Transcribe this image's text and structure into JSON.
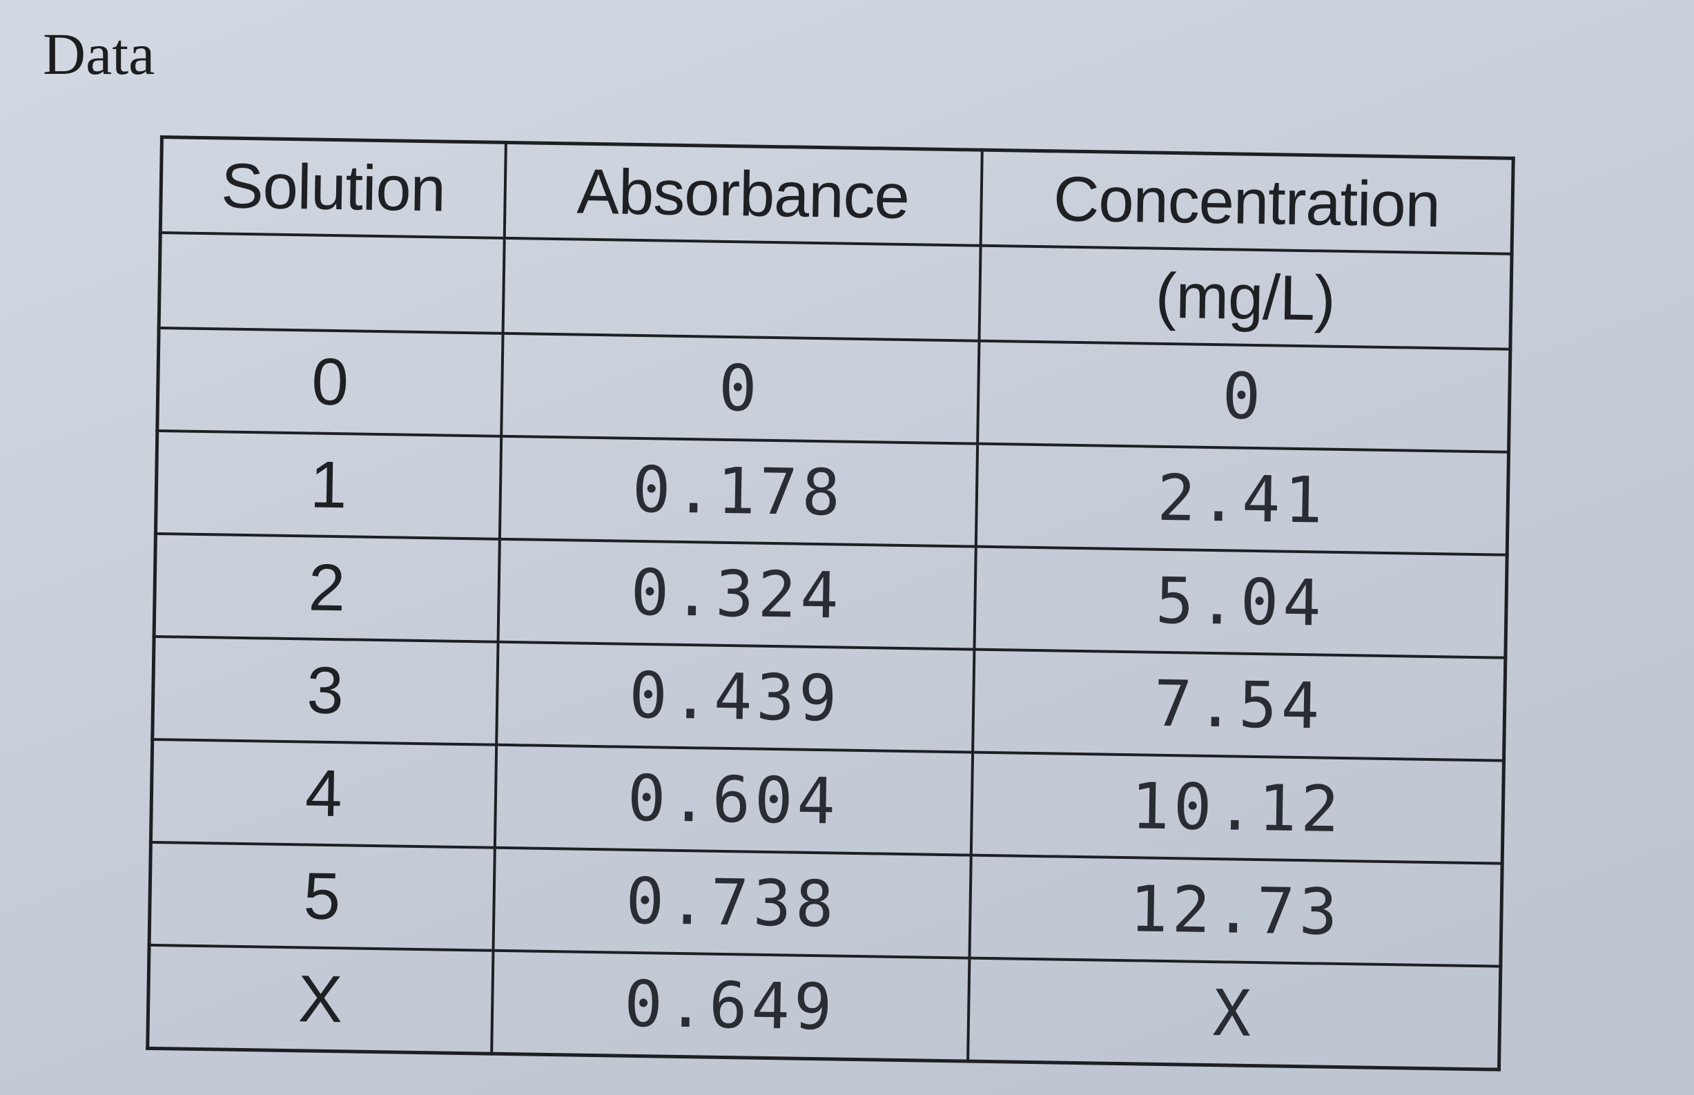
{
  "header": {
    "title": "Data"
  },
  "table": {
    "columns": [
      "Solution",
      "Absorbance",
      "Concentration"
    ],
    "unit": "(mg/L)",
    "rows": [
      [
        "0",
        "0",
        "0"
      ],
      [
        "1",
        "0.178",
        "2.41"
      ],
      [
        "2",
        "0.324",
        "5.04"
      ],
      [
        "3",
        "0.439",
        "7.54"
      ],
      [
        "4",
        "0.604",
        "10.12"
      ],
      [
        "5",
        "0.738",
        "12.73"
      ],
      [
        "X",
        "0.649",
        "X"
      ]
    ]
  }
}
